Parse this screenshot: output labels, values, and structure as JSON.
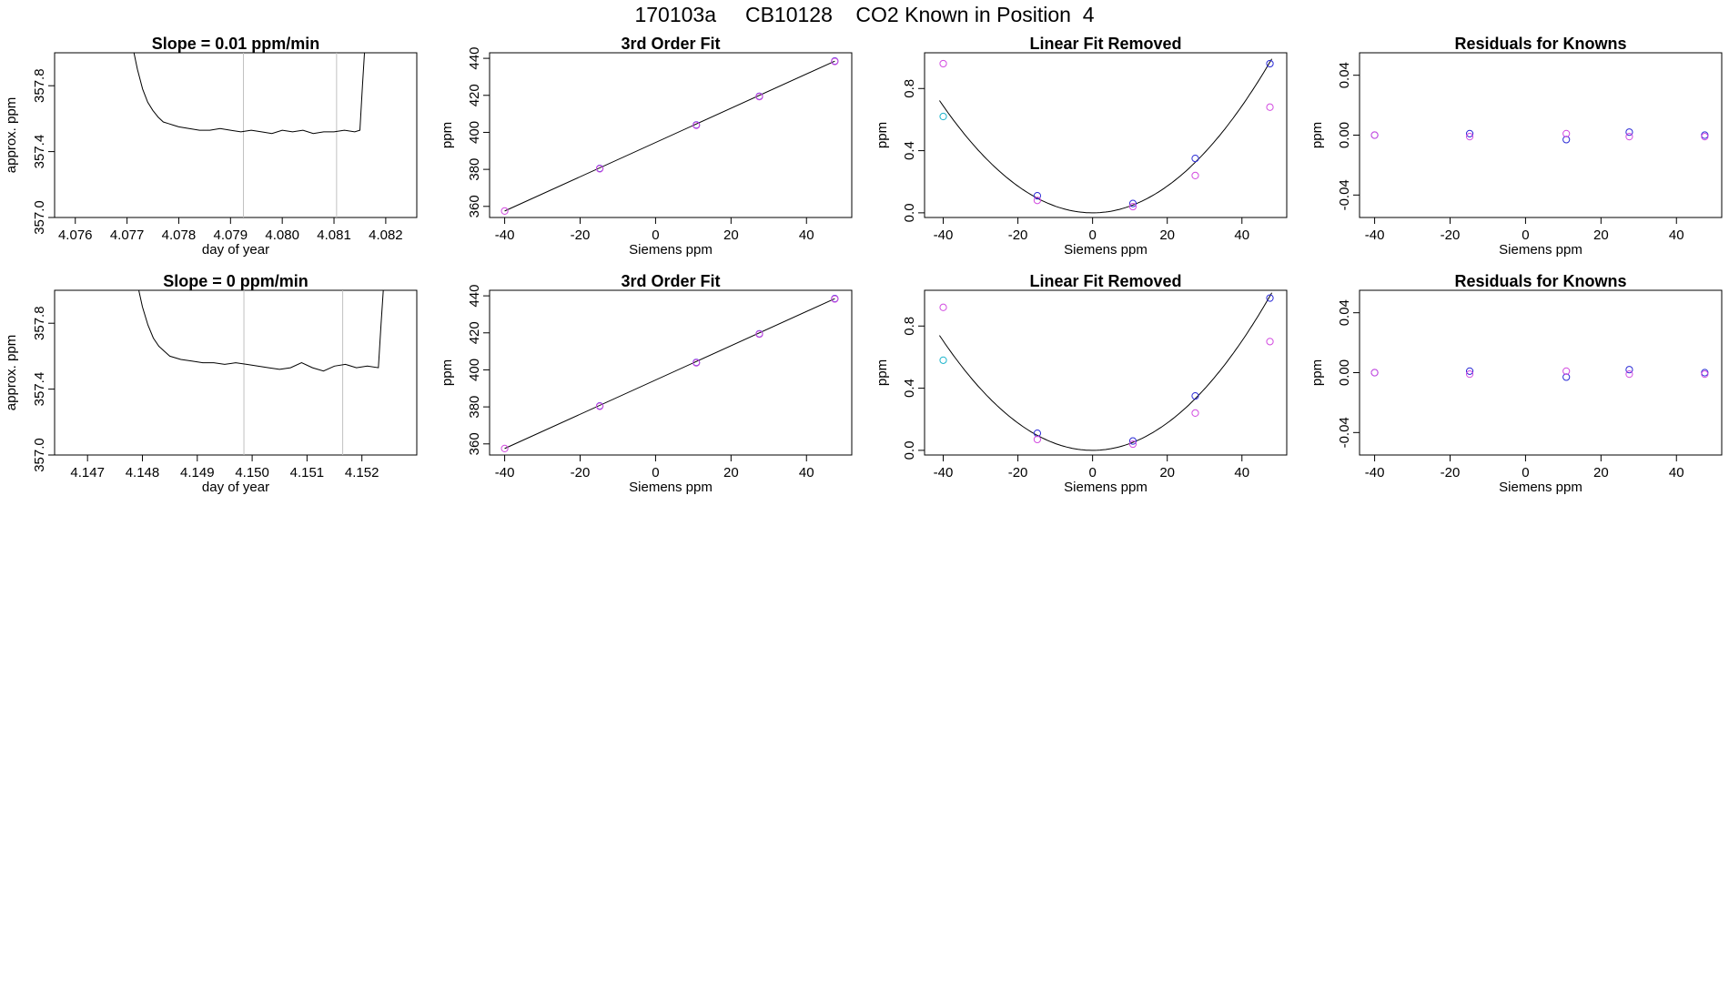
{
  "title": "170103a     CB10128    CO2 Known in Position  4",
  "colors": {
    "line": "#000000",
    "blue": "#2a2ad6",
    "magenta": "#d24be0",
    "cyan": "#1fb5cc",
    "grid": "#c0c0c0"
  },
  "chart_data": [
    {
      "type": "line",
      "panel": "row1-col1",
      "title": "Slope =  0.01  ppm/min",
      "xlabel": "day of year",
      "ylabel": "approx. ppm",
      "xlim": [
        4.0756,
        4.0826
      ],
      "ylim": [
        357.0,
        358.0
      ],
      "xticks": [
        4.076,
        4.077,
        4.078,
        4.079,
        4.08,
        4.081,
        4.082
      ],
      "xtick_labels": [
        "4.076",
        "4.077",
        "4.078",
        "4.079",
        "4.080",
        "4.081",
        "4.082"
      ],
      "yticks": [
        357.0,
        357.4,
        357.8
      ],
      "ytick_labels": [
        "357.0",
        "357.4",
        "357.8"
      ],
      "vlines": [
        4.07925,
        4.08105
      ],
      "series": [
        {
          "name": "trace",
          "x": [
            4.0771,
            4.0772,
            4.0773,
            4.0774,
            4.0775,
            4.0776,
            4.0777,
            4.0778,
            4.0779,
            4.078,
            4.0782,
            4.0784,
            4.0786,
            4.0788,
            4.079,
            4.0792,
            4.0794,
            4.0796,
            4.0798,
            4.08,
            4.0802,
            4.0804,
            4.0806,
            4.0808,
            4.081,
            4.0812,
            4.0814,
            4.0815,
            4.08155,
            4.0816
          ],
          "y": [
            358.05,
            357.9,
            357.78,
            357.7,
            357.65,
            357.61,
            357.58,
            357.57,
            357.56,
            357.55,
            357.54,
            357.53,
            357.53,
            357.54,
            357.53,
            357.52,
            357.53,
            357.52,
            357.51,
            357.53,
            357.52,
            357.53,
            357.51,
            357.52,
            357.52,
            357.53,
            357.52,
            357.53,
            357.8,
            358.05
          ]
        }
      ]
    },
    {
      "type": "scatter",
      "panel": "row1-col2",
      "title": "3rd Order Fit",
      "xlabel": "Siemens ppm",
      "ylabel": "ppm",
      "xlim": [
        -44,
        52
      ],
      "ylim": [
        354,
        443
      ],
      "xticks": [
        -40,
        -20,
        0,
        20,
        40
      ],
      "xtick_labels": [
        "-40",
        "-20",
        "0",
        "20",
        "40"
      ],
      "yticks": [
        360,
        380,
        400,
        420,
        440
      ],
      "ytick_labels": [
        "360",
        "380",
        "400",
        "420",
        "440"
      ],
      "fit_line": {
        "x": [
          -40,
          47.5
        ],
        "y": [
          357.5,
          438.5
        ]
      },
      "series": [
        {
          "name": "blue",
          "color": "blue",
          "x": [
            -14.8,
            10.8,
            27.5,
            47.5
          ],
          "y": [
            380.5,
            404,
            419.5,
            438.5
          ]
        },
        {
          "name": "magenta",
          "color": "magenta",
          "x": [
            -40,
            -14.8,
            10.8,
            27.5,
            47.5
          ],
          "y": [
            357.5,
            380.3,
            403.8,
            419.3,
            438.3
          ]
        }
      ]
    },
    {
      "type": "scatter",
      "panel": "row1-col3",
      "title": "Linear Fit Removed",
      "xlabel": "Siemens ppm",
      "ylabel": "ppm",
      "xlim": [
        -45,
        52
      ],
      "ylim": [
        -0.03,
        1.03
      ],
      "xticks": [
        -40,
        -20,
        0,
        20,
        40
      ],
      "xtick_labels": [
        "-40",
        "-20",
        "0",
        "20",
        "40"
      ],
      "yticks": [
        0.0,
        0.4,
        0.8
      ],
      "ytick_labels": [
        "0.0",
        "0.4",
        "0.8"
      ],
      "curve": {
        "type": "quadratic",
        "a": 0.00043,
        "xmin": -41,
        "xmax": 48
      },
      "series": [
        {
          "name": "blue",
          "color": "blue",
          "x": [
            -14.8,
            10.8,
            27.5,
            47.5
          ],
          "y": [
            0.11,
            0.06,
            0.35,
            0.96
          ]
        },
        {
          "name": "magenta",
          "color": "magenta",
          "x": [
            -40,
            -14.8,
            10.8,
            27.5,
            47.5
          ],
          "y": [
            0.96,
            0.08,
            0.04,
            0.24,
            0.68
          ]
        },
        {
          "name": "cyan",
          "color": "cyan",
          "x": [
            -40
          ],
          "y": [
            0.62
          ]
        }
      ]
    },
    {
      "type": "scatter",
      "panel": "row1-col4",
      "title": "Residuals for Knowns",
      "xlabel": "Siemens ppm",
      "ylabel": "ppm",
      "xlim": [
        -44,
        52
      ],
      "ylim": [
        -0.055,
        0.055
      ],
      "xticks": [
        -40,
        -20,
        0,
        20,
        40
      ],
      "xtick_labels": [
        "-40",
        "-20",
        "0",
        "20",
        "40"
      ],
      "yticks": [
        -0.04,
        0.0,
        0.04
      ],
      "ytick_labels": [
        "-0.04",
        "0.00",
        "0.04"
      ],
      "series": [
        {
          "name": "blue",
          "color": "blue",
          "x": [
            -40,
            -14.8,
            10.8,
            27.5,
            47.5
          ],
          "y": [
            0.0,
            0.001,
            -0.003,
            0.002,
            0.0
          ]
        },
        {
          "name": "magenta",
          "color": "magenta",
          "x": [
            -40,
            -14.8,
            10.8,
            27.5,
            47.5
          ],
          "y": [
            0.0,
            -0.001,
            0.001,
            -0.001,
            -0.001
          ]
        }
      ]
    },
    {
      "type": "line",
      "panel": "row2-col1",
      "title": "Slope =  0  ppm/min",
      "xlabel": "day of year",
      "ylabel": "approx. ppm",
      "xlim": [
        4.1464,
        4.153
      ],
      "ylim": [
        357.0,
        358.0
      ],
      "xticks": [
        4.147,
        4.148,
        4.149,
        4.15,
        4.151,
        4.152
      ],
      "xtick_labels": [
        "4.147",
        "4.148",
        "4.149",
        "4.150",
        "4.151",
        "4.152"
      ],
      "yticks": [
        357.0,
        357.4,
        357.8
      ],
      "ytick_labels": [
        "357.0",
        "357.4",
        "357.8"
      ],
      "vlines": [
        4.14985,
        4.15165
      ],
      "series": [
        {
          "name": "trace",
          "x": [
            4.1479,
            4.148,
            4.1481,
            4.1482,
            4.1483,
            4.1484,
            4.1485,
            4.1487,
            4.1489,
            4.1491,
            4.1493,
            4.1495,
            4.1497,
            4.1499,
            4.1501,
            4.1503,
            4.1505,
            4.1507,
            4.1509,
            4.1511,
            4.1513,
            4.1515,
            4.1517,
            4.1519,
            4.1521,
            4.1523,
            4.15235,
            4.1524
          ],
          "y": [
            358.05,
            357.9,
            357.79,
            357.71,
            357.66,
            357.63,
            357.6,
            357.58,
            357.57,
            357.56,
            357.56,
            357.55,
            357.56,
            357.55,
            357.54,
            357.53,
            357.52,
            357.53,
            357.56,
            357.53,
            357.51,
            357.54,
            357.55,
            357.53,
            357.54,
            357.53,
            357.8,
            358.05
          ]
        }
      ]
    },
    {
      "type": "scatter",
      "panel": "row2-col2",
      "title": "3rd Order Fit",
      "xlabel": "Siemens ppm",
      "ylabel": "ppm",
      "xlim": [
        -44,
        52
      ],
      "ylim": [
        354,
        443
      ],
      "xticks": [
        -40,
        -20,
        0,
        20,
        40
      ],
      "xtick_labels": [
        "-40",
        "-20",
        "0",
        "20",
        "40"
      ],
      "yticks": [
        360,
        380,
        400,
        420,
        440
      ],
      "ytick_labels": [
        "360",
        "380",
        "400",
        "420",
        "440"
      ],
      "fit_line": {
        "x": [
          -40,
          47.5
        ],
        "y": [
          357.5,
          438.5
        ]
      },
      "series": [
        {
          "name": "blue",
          "color": "blue",
          "x": [
            -14.8,
            10.8,
            27.5,
            47.5
          ],
          "y": [
            380.5,
            404,
            419.5,
            438.5
          ]
        },
        {
          "name": "magenta",
          "color": "magenta",
          "x": [
            -40,
            -14.8,
            10.8,
            27.5,
            47.5
          ],
          "y": [
            357.5,
            380.3,
            403.8,
            419.3,
            438.3
          ]
        }
      ]
    },
    {
      "type": "scatter",
      "panel": "row2-col3",
      "title": "Linear Fit Removed",
      "xlabel": "Siemens ppm",
      "ylabel": "ppm",
      "xlim": [
        -45,
        52
      ],
      "ylim": [
        -0.03,
        1.03
      ],
      "xticks": [
        -40,
        -20,
        0,
        20,
        40
      ],
      "xtick_labels": [
        "-40",
        "-20",
        "0",
        "20",
        "40"
      ],
      "yticks": [
        0.0,
        0.4,
        0.8
      ],
      "ytick_labels": [
        "0.0",
        "0.4",
        "0.8"
      ],
      "curve": {
        "type": "quadratic",
        "a": 0.00044,
        "xmin": -41,
        "xmax": 48
      },
      "series": [
        {
          "name": "blue",
          "color": "blue",
          "x": [
            -14.8,
            10.8,
            27.5,
            47.5
          ],
          "y": [
            0.11,
            0.06,
            0.35,
            0.98
          ]
        },
        {
          "name": "magenta",
          "color": "magenta",
          "x": [
            -40,
            -14.8,
            10.8,
            27.5,
            47.5
          ],
          "y": [
            0.92,
            0.07,
            0.04,
            0.24,
            0.7
          ]
        },
        {
          "name": "cyan",
          "color": "cyan",
          "x": [
            -40
          ],
          "y": [
            0.58
          ]
        }
      ]
    },
    {
      "type": "scatter",
      "panel": "row2-col4",
      "title": "Residuals for Knowns",
      "xlabel": "Siemens ppm",
      "ylabel": "ppm",
      "xlim": [
        -44,
        52
      ],
      "ylim": [
        -0.055,
        0.055
      ],
      "xticks": [
        -40,
        -20,
        0,
        20,
        40
      ],
      "xtick_labels": [
        "-40",
        "-20",
        "0",
        "20",
        "40"
      ],
      "yticks": [
        -0.04,
        0.0,
        0.04
      ],
      "ytick_labels": [
        "-0.04",
        "0.00",
        "0.04"
      ],
      "series": [
        {
          "name": "blue",
          "color": "blue",
          "x": [
            -40,
            -14.8,
            10.8,
            27.5,
            47.5
          ],
          "y": [
            0.0,
            0.001,
            -0.003,
            0.002,
            0.0
          ]
        },
        {
          "name": "magenta",
          "color": "magenta",
          "x": [
            -40,
            -14.8,
            10.8,
            27.5,
            47.5
          ],
          "y": [
            0.0,
            -0.001,
            0.001,
            -0.001,
            -0.001
          ]
        }
      ]
    }
  ]
}
